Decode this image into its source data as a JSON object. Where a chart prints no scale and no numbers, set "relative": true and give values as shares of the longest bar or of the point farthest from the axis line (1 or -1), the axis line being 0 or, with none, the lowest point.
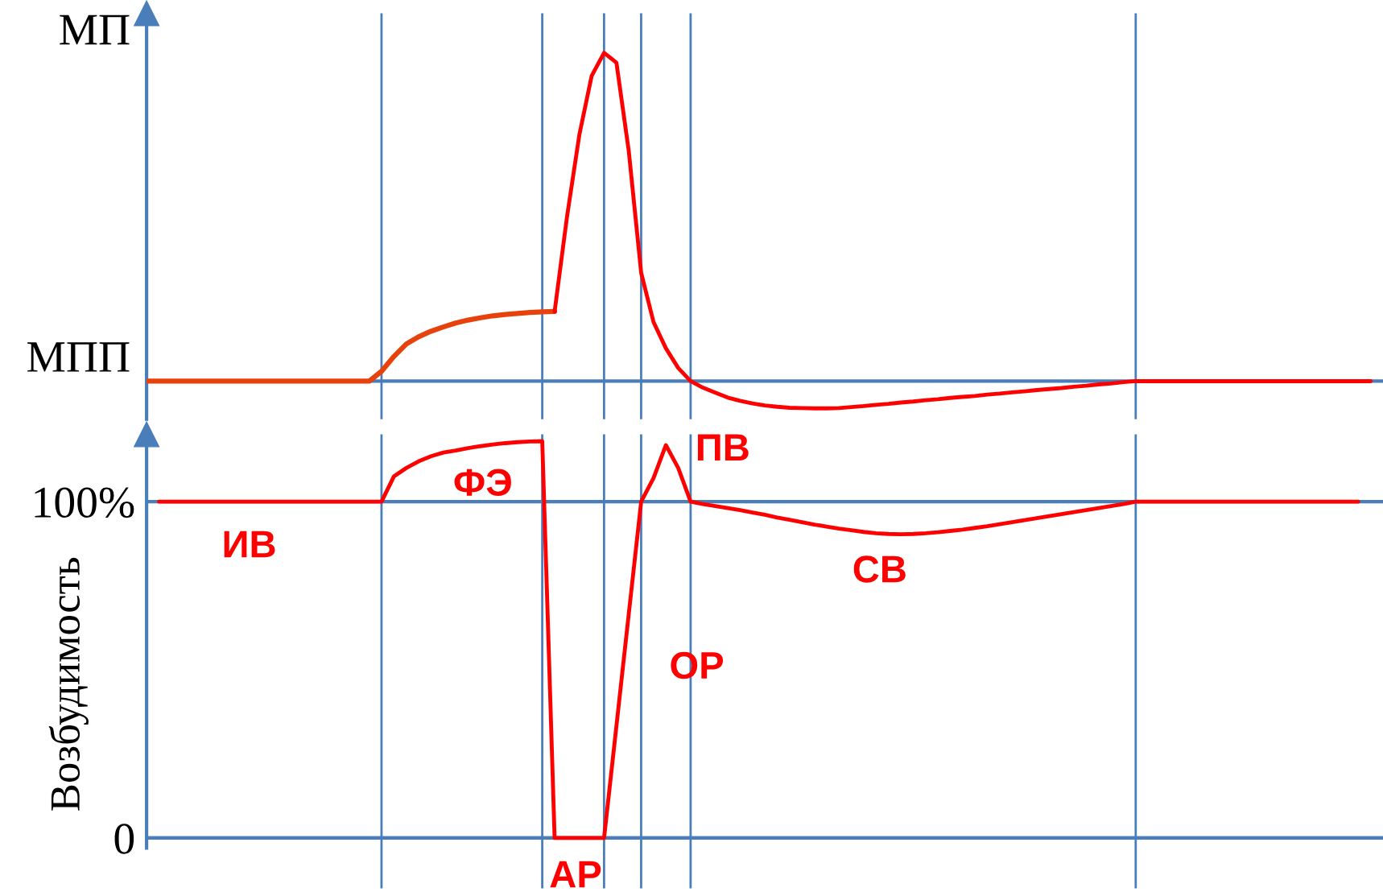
{
  "chart_data": [
    {
      "type": "line",
      "relative": true,
      "ylabel": "МП",
      "tick_labels": false,
      "categories": [
        null,
        null,
        null,
        null,
        null,
        null,
        null,
        null,
        null,
        null,
        null,
        null,
        null,
        null,
        null,
        null,
        null,
        null,
        null,
        null,
        null,
        null,
        null,
        null,
        null,
        null,
        null,
        null,
        null,
        null,
        null,
        null,
        null,
        null,
        null,
        null,
        null,
        null,
        null,
        null,
        null,
        null,
        null,
        null,
        null,
        null,
        null,
        null,
        null,
        null,
        null,
        null,
        null,
        null,
        null,
        null,
        null,
        null,
        null,
        null,
        null,
        null,
        null,
        null,
        null,
        null,
        null,
        null,
        null,
        null,
        null,
        null,
        null,
        null,
        null,
        null,
        null,
        null,
        null,
        null,
        null,
        null,
        null,
        null,
        null,
        null,
        null,
        null,
        null,
        null,
        null,
        null,
        null,
        null,
        null,
        null,
        null,
        null,
        null,
        null
      ],
      "series": [
        {
          "color": "#e8420c",
          "values": [
            0,
            0,
            0,
            0,
            0,
            0,
            0,
            0,
            0,
            0,
            0,
            0,
            0,
            0,
            0,
            0,
            0,
            0,
            0,
            0.03,
            0.075,
            0.113,
            0.135,
            0.152,
            0.165,
            0.177,
            0.186,
            0.193,
            0.199,
            0.203,
            0.206,
            0.209,
            0.211,
            0.212,
            null,
            null,
            null,
            null,
            null,
            null,
            null,
            null,
            null,
            null,
            null,
            null,
            null,
            null,
            null,
            null,
            null,
            null,
            null,
            null,
            null,
            null,
            null,
            null,
            null,
            null,
            null,
            null,
            null,
            null,
            null,
            null,
            null,
            null,
            null,
            null,
            null,
            null,
            null,
            null,
            null,
            null,
            null,
            null,
            null,
            null,
            null,
            null,
            null,
            null,
            null,
            null,
            null,
            null,
            null,
            null,
            null,
            null,
            null,
            null,
            null,
            null,
            null,
            null,
            null,
            null
          ]
        },
        {
          "color": "#ff0000",
          "values": [
            null,
            null,
            null,
            null,
            null,
            null,
            null,
            null,
            null,
            null,
            null,
            null,
            null,
            null,
            null,
            null,
            null,
            null,
            null,
            null,
            null,
            null,
            null,
            null,
            null,
            null,
            null,
            null,
            null,
            null,
            null,
            null,
            null,
            0.212,
            0.5,
            0.75,
            0.93,
            1.0,
            0.97,
            0.7,
            0.33,
            0.18,
            0.1,
            0.04,
            0,
            -0.02,
            -0.035,
            -0.05,
            -0.06,
            -0.068,
            -0.074,
            -0.078,
            -0.081,
            -0.082,
            -0.083,
            -0.083,
            -0.082,
            -0.079,
            -0.076,
            -0.072,
            -0.069,
            -0.065,
            -0.062,
            -0.058,
            -0.055,
            -0.051,
            -0.048,
            -0.045,
            -0.041,
            -0.038,
            -0.034,
            -0.031,
            -0.027,
            -0.024,
            -0.021,
            -0.017,
            -0.014,
            -0.01,
            -0.007,
            -0.003,
            0,
            0,
            0,
            0,
            0,
            0,
            0,
            0,
            0,
            0,
            0,
            0,
            0,
            0,
            0,
            0,
            0,
            0,
            0,
            0
          ]
        }
      ],
      "grid": "x",
      "ref_lines": [
        {
          "axis": "y",
          "value": 0,
          "label": "МПП"
        }
      ]
    },
    {
      "type": "line",
      "ylabel": "Возбудимость",
      "ylim": [
        -15,
        120
      ],
      "tick_labels": "y",
      "grid": true,
      "yticks": [
        {
          "value": 0,
          "label": "0"
        },
        {
          "value": 100,
          "label": "100%"
        }
      ],
      "categories": [
        null,
        null,
        null,
        null,
        null,
        null,
        null,
        null,
        null,
        null,
        null,
        null,
        null,
        null,
        null,
        null,
        null,
        null,
        null,
        null,
        null,
        null,
        null,
        null,
        null,
        null,
        null,
        null,
        null,
        null,
        null,
        null,
        null,
        null,
        null,
        null,
        null,
        null,
        null,
        null,
        null,
        null,
        null,
        null,
        null,
        null,
        null,
        null,
        null,
        null,
        null,
        null,
        null,
        null,
        null,
        null,
        null,
        null,
        null,
        null,
        null,
        null,
        null,
        null,
        null,
        null,
        null,
        null,
        null,
        null,
        null,
        null,
        null,
        null,
        null,
        null,
        null,
        null,
        null,
        null,
        null,
        null,
        null,
        null,
        null,
        null,
        null,
        null,
        null,
        null,
        null,
        null,
        null,
        null,
        null,
        null,
        null,
        null,
        null,
        null
      ],
      "series": [
        {
          "color": "#ff0000",
          "values": [
            null,
            100,
            100,
            100,
            100,
            100,
            100,
            100,
            100,
            100,
            100,
            100,
            100,
            100,
            100,
            100,
            100,
            100,
            100,
            100,
            107.5,
            110,
            112,
            113.5,
            114.6,
            115.2,
            115.9,
            116.5,
            117,
            117.4,
            117.7,
            117.9,
            118,
            0,
            0,
            0,
            0,
            0,
            33.3,
            66.7,
            100,
            107,
            116.8,
            110,
            100,
            99.3,
            98.7,
            98.1,
            97.5,
            96.8,
            96.1,
            95.3,
            94.6,
            93.9,
            93.2,
            92.6,
            92,
            91.5,
            91,
            90.6,
            90.4,
            90.3,
            90.4,
            90.6,
            90.9,
            91.3,
            91.7,
            92.2,
            92.7,
            93.3,
            93.9,
            94.5,
            95.1,
            95.7,
            96.3,
            96.9,
            97.5,
            98.1,
            98.7,
            99.3,
            100,
            100,
            100,
            100,
            100,
            100,
            100,
            100,
            100,
            100,
            100,
            100,
            100,
            100,
            100,
            100,
            100,
            100,
            100,
            null
          ]
        }
      ],
      "annotations": [
        "ИВ",
        "ФЭ",
        "ПВ",
        "СВ",
        "ОР",
        "АР"
      ]
    }
  ]
}
